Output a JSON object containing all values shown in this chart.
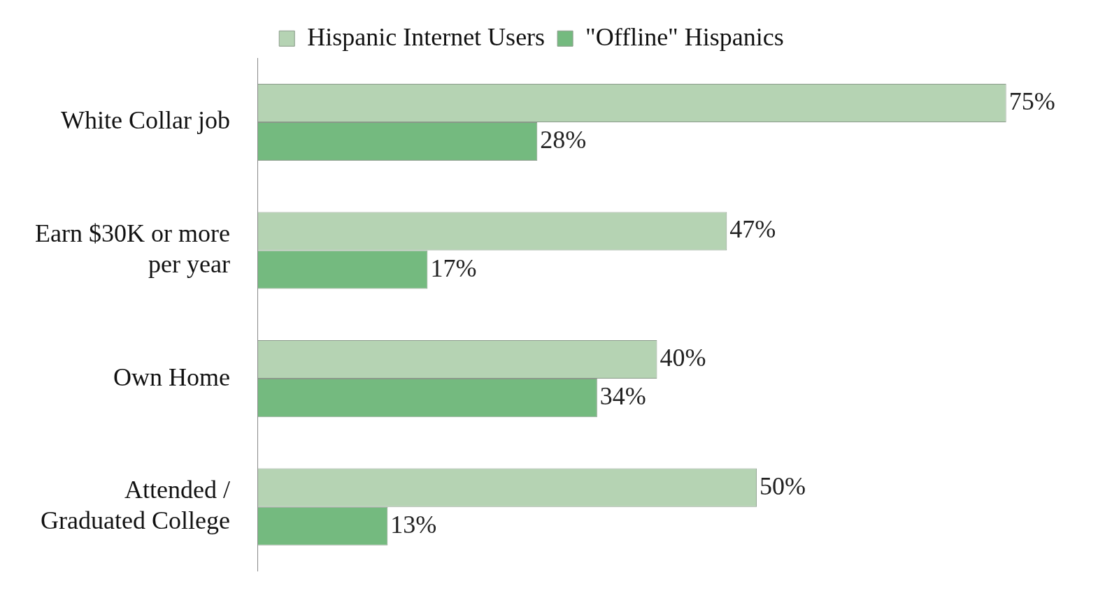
{
  "chart_data": {
    "type": "bar",
    "orientation": "horizontal",
    "categories": [
      "White Collar job",
      "Earn $30K or more per year",
      "Own Home",
      "Attended / Graduated College"
    ],
    "series": [
      {
        "name": "Hispanic Internet Users",
        "color": "#b5d3b3",
        "values": [
          75,
          47,
          40,
          50
        ],
        "value_labels": [
          "75%",
          "47%",
          "40%",
          "50%"
        ]
      },
      {
        "name": "\"Offline\" Hispanics",
        "color": "#74ba7f",
        "values": [
          28,
          17,
          34,
          13
        ],
        "value_labels": [
          "28%",
          "17%",
          "34%",
          "13%"
        ]
      }
    ],
    "legend": "top",
    "grid": false
  }
}
